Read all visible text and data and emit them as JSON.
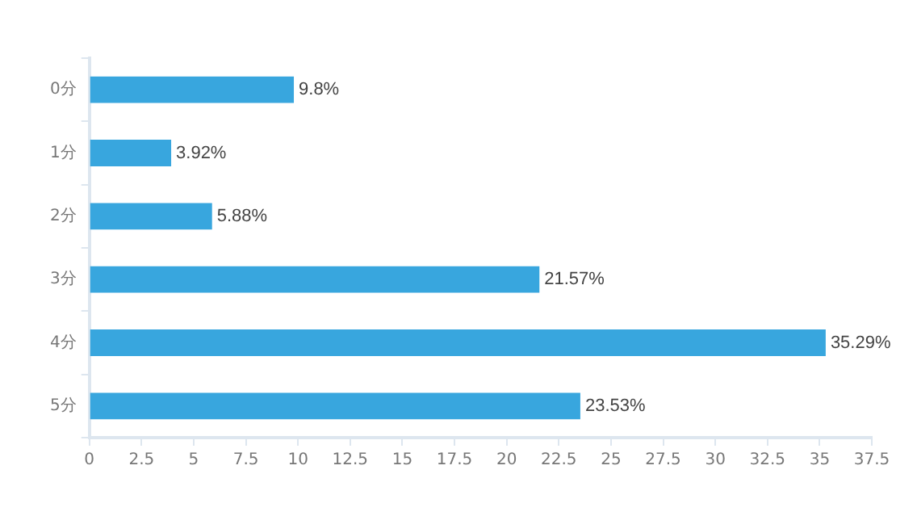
{
  "chart_data": {
    "type": "bar",
    "orientation": "horizontal",
    "categories": [
      "0分",
      "1分",
      "2分",
      "3分",
      "4分",
      "5分"
    ],
    "values": [
      9.8,
      3.92,
      5.88,
      21.57,
      35.29,
      23.53
    ],
    "value_labels": [
      "9.8%",
      "3.92%",
      "5.88%",
      "21.57%",
      "35.29%",
      "23.53%"
    ],
    "color": "#38a6de",
    "xlim": [
      0,
      37.5
    ],
    "xticks": [
      0,
      2.5,
      5,
      7.5,
      10,
      12.5,
      15,
      17.5,
      20,
      22.5,
      25,
      27.5,
      30,
      32.5,
      35,
      37.5
    ],
    "grid": false,
    "legend": false
  }
}
